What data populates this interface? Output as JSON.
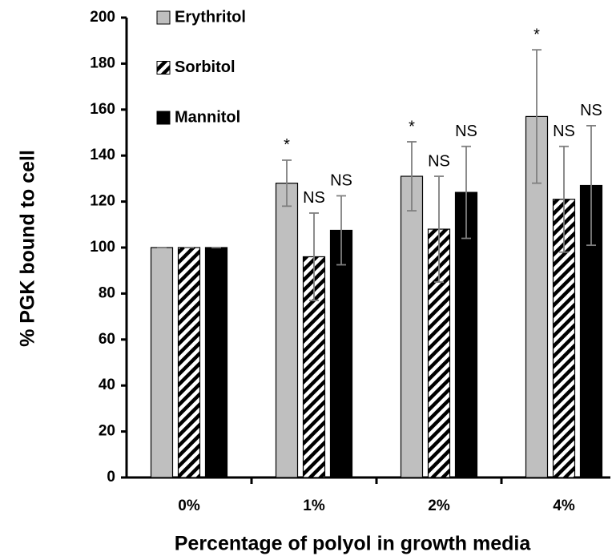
{
  "chart_data": {
    "type": "bar",
    "x_label": "Percentage of polyol in growth media",
    "y_label": "% PGK bound to cell",
    "categories": [
      "0%",
      "1%",
      "2%",
      "4%"
    ],
    "series": [
      {
        "name": "Erythritol",
        "color": "#bfbfbf",
        "pattern": "solid",
        "values": [
          100,
          128,
          131,
          157
        ],
        "errors": [
          0,
          10,
          15,
          29
        ],
        "annotations": [
          null,
          "*",
          "*",
          "*"
        ]
      },
      {
        "name": "Sorbitol",
        "color": "#000000",
        "pattern": "hatch",
        "values": [
          100,
          96,
          108,
          121
        ],
        "errors": [
          0,
          19,
          23,
          23
        ],
        "annotations": [
          null,
          "NS",
          "NS",
          "NS"
        ]
      },
      {
        "name": "Mannitol",
        "color": "#000000",
        "pattern": "solid",
        "values": [
          100,
          107.5,
          124,
          127
        ],
        "errors": [
          0,
          15,
          20,
          26
        ],
        "annotations": [
          null,
          "NS",
          "NS",
          "NS"
        ]
      }
    ],
    "ylim": [
      0,
      200
    ],
    "yticks": [
      0,
      20,
      40,
      60,
      80,
      100,
      120,
      140,
      160,
      180,
      200
    ],
    "grid": false,
    "legend": "top-left"
  }
}
